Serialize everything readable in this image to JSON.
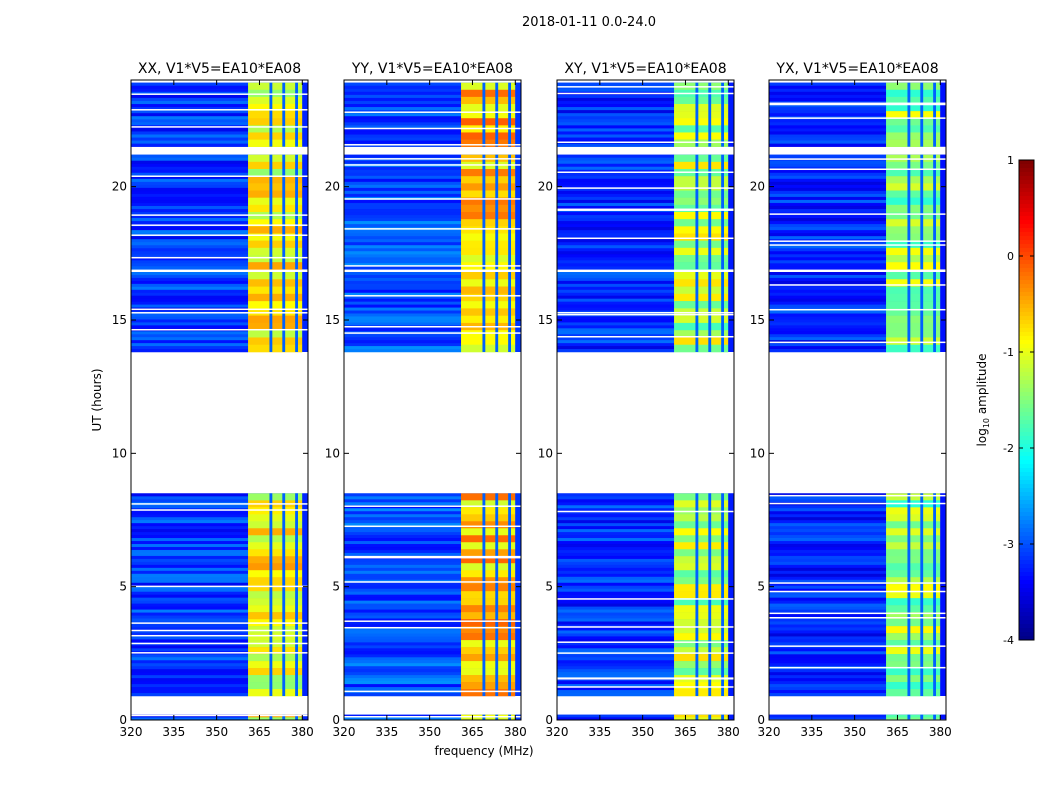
{
  "chart_data": {
    "type": "heatmap",
    "title": "2018-01-11 0.0-24.0",
    "xlabel": "frequency (MHz)",
    "ylabel": "UT (hours)",
    "xlim": [
      320,
      382
    ],
    "ylim": [
      0,
      24
    ],
    "xticks": [
      320,
      335,
      350,
      365,
      380
    ],
    "yticks": [
      0,
      5,
      10,
      15,
      20
    ],
    "colorbar": {
      "label": "log",
      "label_sub": "10",
      "label_suffix": " amplitude",
      "range": [
        -4,
        1
      ],
      "ticks": [
        1,
        0,
        -1,
        -2,
        -3,
        -4
      ],
      "colormap": "jet"
    },
    "panels": [
      {
        "title": "XX, V1*V5=EA10*EA08",
        "pol": "XX",
        "band_level": 0.62,
        "bg_level": 0.18
      },
      {
        "title": "YY, V1*V5=EA10*EA08",
        "pol": "YY",
        "band_level": 0.68,
        "bg_level": 0.2
      },
      {
        "title": "XY, V1*V5=EA10*EA08",
        "pol": "XY",
        "band_level": 0.55,
        "bg_level": 0.17
      },
      {
        "title": "YX, V1*V5=EA10*EA08",
        "pol": "YX",
        "band_level": 0.52,
        "bg_level": 0.16
      }
    ],
    "data_segments_ut": [
      [
        0.0,
        0.2
      ],
      [
        0.9,
        8.5
      ],
      [
        13.8,
        16.8
      ],
      [
        16.9,
        21.2
      ],
      [
        21.5,
        23.9
      ]
    ],
    "flagged_gaps_ut": [
      [
        0.2,
        0.9
      ],
      [
        8.5,
        13.8
      ],
      [
        21.2,
        21.5
      ]
    ],
    "rfi_band_mhz": [
      361,
      380
    ],
    "rfi_channel_gaps_mhz": [
      [
        368.5,
        369.5
      ],
      [
        373.0,
        374.0
      ],
      [
        377.5,
        378.5
      ]
    ]
  }
}
